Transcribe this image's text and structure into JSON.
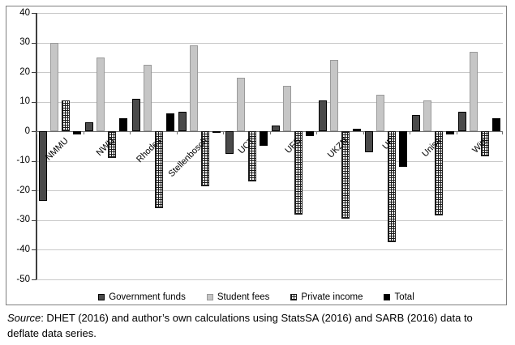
{
  "chart_data": {
    "type": "bar",
    "title": "",
    "xlabel": "",
    "ylabel": "",
    "ylim": [
      -50,
      40
    ],
    "ytick_step": 10,
    "grid": true,
    "legend_position": "bottom",
    "categories": [
      "NMMU",
      "NWU",
      "Rhodes",
      "Stellenbosch",
      "UCT",
      "UFS",
      "UKZN",
      "UP",
      "Unisa",
      "Wits"
    ],
    "series": [
      {
        "name": "Government funds",
        "color": "#4a4a4a",
        "border": "#000000",
        "pattern": "solid",
        "values": [
          -23.5,
          3,
          11,
          6.5,
          -7.5,
          2,
          10.5,
          -7,
          5.5,
          6.5
        ]
      },
      {
        "name": "Student fees",
        "color": "#c6c6c6",
        "border": "#9a9a9a",
        "pattern": "solid",
        "values": [
          30,
          25,
          22.5,
          29,
          18,
          15.5,
          24,
          12.5,
          10.5,
          27
        ]
      },
      {
        "name": "Private income",
        "color": "#ffffff",
        "border": "#1a1a1a",
        "pattern": "crosshatch",
        "values": [
          10.5,
          -9,
          -26,
          -18.5,
          -17,
          -28,
          -29.5,
          -37.5,
          -28.5,
          -8.5
        ]
      },
      {
        "name": "Total",
        "color": "#000000",
        "border": "#000000",
        "pattern": "solid",
        "values": [
          -1,
          4.5,
          6,
          -0.5,
          -5,
          -1.5,
          1,
          -12,
          -1,
          4.5
        ]
      }
    ]
  },
  "source_note": {
    "label": "Source",
    "text": ": DHET (2016) and author’s own calculations using StatsSA (2016) and SARB (2016) data to deflate data series."
  }
}
